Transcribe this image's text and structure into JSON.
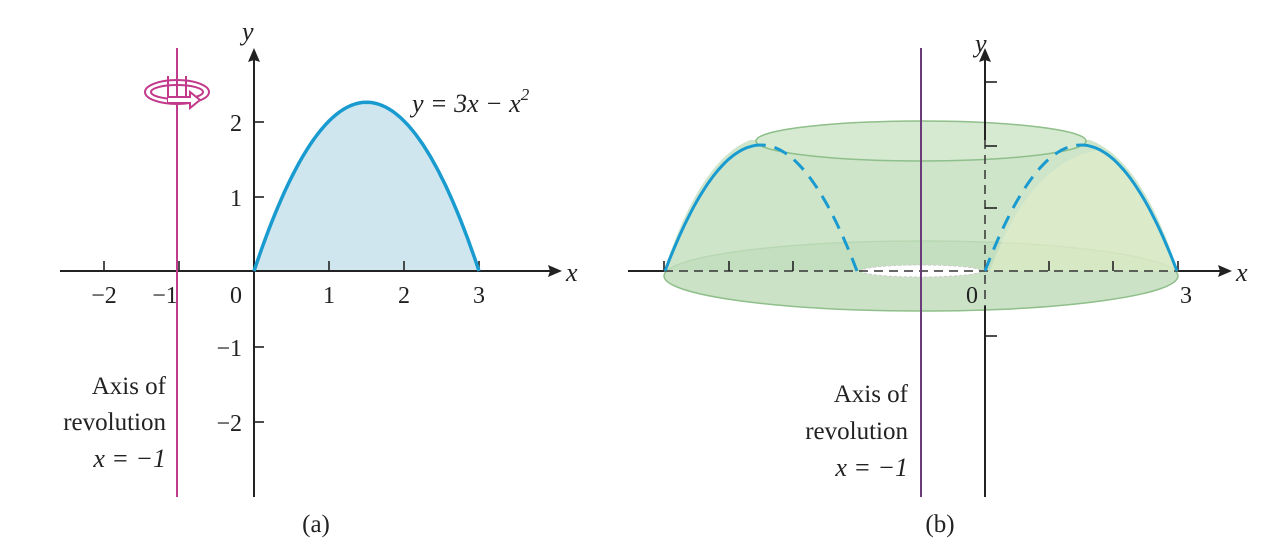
{
  "colors": {
    "curve": "#1a9bd0",
    "region_fill": "#cfe6ef",
    "axis_of_revolution": "#c23a8c",
    "solid_fill": "#b9d8b3",
    "solid_edge": "#8fbf8a",
    "text": "#222222"
  },
  "icons": {
    "rotation": "rotation-arrow-icon"
  },
  "panel_a": {
    "caption": "(a)",
    "equation": {
      "lhs": "y = 3x − x",
      "exponent": "2"
    },
    "x_axis_label": "x",
    "y_axis_label": "y",
    "x_ticks": [
      "−2",
      "−1",
      "0",
      "1",
      "2",
      "3"
    ],
    "y_ticks": [
      "2",
      "1",
      "−1",
      "−2"
    ],
    "axis_of_revolution": {
      "line1": "Axis of",
      "line2": "revolution",
      "line3": "x = −1"
    }
  },
  "panel_b": {
    "caption": "(b)",
    "x_axis_label": "x",
    "y_axis_label": "y",
    "x_ticks": [
      "0",
      "3"
    ],
    "axis_of_revolution": {
      "line1": "Axis of",
      "line2": "revolution",
      "line3": "x = −1"
    }
  },
  "chart_data": {
    "type": "line",
    "function": "y = 3x - x^2",
    "x": [
      0,
      0.5,
      1,
      1.5,
      2,
      2.5,
      3
    ],
    "y": [
      0,
      1.25,
      2,
      2.25,
      2,
      1.25,
      0
    ],
    "xlim": [
      -2.5,
      4
    ],
    "ylim": [
      -3,
      3
    ],
    "axis_of_revolution_x": -1
  }
}
